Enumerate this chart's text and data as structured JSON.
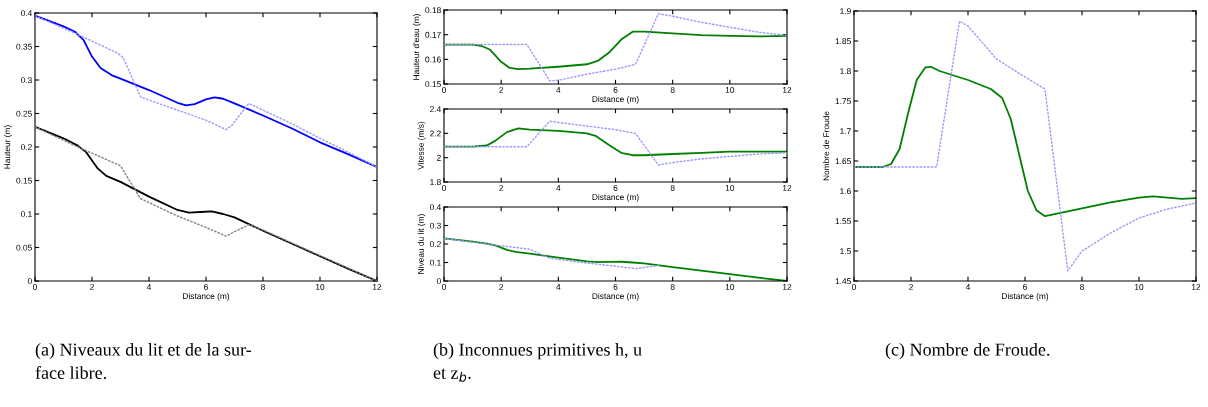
{
  "chart_data": [
    {
      "type": "line",
      "xlabel": "Distance (m)",
      "ylabel": "Hauteur (m)",
      "xlim": [
        0,
        12
      ],
      "xticks": [
        0,
        2,
        4,
        6,
        8,
        10,
        12
      ],
      "ylim": [
        0,
        0.4
      ],
      "yticks": [
        0,
        0.05,
        0.1,
        0.15,
        0.2,
        0.25,
        0.3,
        0.35,
        0.4
      ],
      "grid": false,
      "legend": false,
      "annotations": [
        "(a) Niveaux du lit et de la sur-\nface libre."
      ],
      "series": [
        {
          "color": "#9999ff",
          "line_style": "dotted",
          "x": [
            0,
            1.5,
            2.9,
            3.1,
            3.7,
            4,
            5,
            6,
            6.7,
            6.9,
            7.5,
            8,
            9,
            10,
            11,
            12
          ],
          "values": [
            0.396,
            0.368,
            0.34,
            0.333,
            0.275,
            0.27,
            0.255,
            0.24,
            0.226,
            0.232,
            0.265,
            0.255,
            0.235,
            0.213,
            0.192,
            0.17
          ]
        },
        {
          "color": "#0000ff",
          "line_style": "solid",
          "x": [
            0,
            1,
            1.4,
            1.7,
            2,
            2.3,
            2.7,
            3,
            4,
            5,
            5.3,
            5.6,
            6,
            6.3,
            6.6,
            7,
            8,
            9,
            10,
            11,
            12
          ],
          "values": [
            0.396,
            0.38,
            0.372,
            0.36,
            0.335,
            0.318,
            0.307,
            0.302,
            0.285,
            0.266,
            0.262,
            0.264,
            0.271,
            0.274,
            0.272,
            0.265,
            0.247,
            0.228,
            0.207,
            0.189,
            0.17
          ]
        },
        {
          "color": "#808080",
          "line_style": "dotted",
          "x": [
            0,
            1.5,
            3,
            3.7,
            5,
            6,
            6.7,
            7.5,
            8,
            9,
            10,
            11,
            12
          ],
          "values": [
            0.23,
            0.2,
            0.172,
            0.123,
            0.097,
            0.08,
            0.067,
            0.084,
            0.076,
            0.057,
            0.038,
            0.019,
            0
          ]
        },
        {
          "color": "#000000",
          "line_style": "solid",
          "x": [
            0,
            1,
            1.5,
            1.8,
            2,
            2.2,
            2.5,
            3,
            4,
            5,
            5.4,
            5.8,
            6.2,
            6.6,
            7,
            8,
            9,
            10,
            11,
            12
          ],
          "values": [
            0.23,
            0.213,
            0.202,
            0.192,
            0.18,
            0.168,
            0.157,
            0.148,
            0.126,
            0.106,
            0.102,
            0.103,
            0.104,
            0.1,
            0.095,
            0.075,
            0.056,
            0.037,
            0.018,
            0
          ]
        }
      ]
    },
    {
      "type": "line",
      "xlabel": "Distance (m)",
      "ylabel": "Hauteur d'eau (m)",
      "xlim": [
        0,
        12
      ],
      "xticks": [
        0,
        2,
        4,
        6,
        8,
        10,
        12
      ],
      "ylim": [
        0.15,
        0.18
      ],
      "yticks": [
        0.15,
        0.16,
        0.17,
        0.18
      ],
      "grid": false,
      "legend": false,
      "series": [
        {
          "color": "#9999ff",
          "line_style": "dotted",
          "x": [
            0,
            2.9,
            3.7,
            4,
            5,
            6,
            6.7,
            7.5,
            8,
            9,
            10,
            11,
            12
          ],
          "values": [
            0.166,
            0.166,
            0.1513,
            0.1515,
            0.154,
            0.156,
            0.158,
            0.1785,
            0.1775,
            0.175,
            0.173,
            0.171,
            0.1697
          ]
        },
        {
          "color": "#007f00",
          "line_style": "solid",
          "x": [
            0,
            1,
            1.3,
            1.6,
            2,
            2.3,
            2.6,
            3,
            4,
            5,
            5.4,
            5.8,
            6.2,
            6.6,
            7,
            8,
            9,
            10,
            11,
            12
          ],
          "values": [
            0.166,
            0.166,
            0.1655,
            0.164,
            0.159,
            0.1565,
            0.156,
            0.1562,
            0.157,
            0.158,
            0.1595,
            0.163,
            0.168,
            0.1712,
            0.1712,
            0.1705,
            0.1698,
            0.1695,
            0.1693,
            0.1695
          ]
        }
      ]
    },
    {
      "type": "line",
      "xlabel": "Distance (m)",
      "ylabel": "Vitesse (m/s)",
      "xlim": [
        0,
        12
      ],
      "xticks": [
        0,
        2,
        4,
        6,
        8,
        10,
        12
      ],
      "ylim": [
        1.8,
        2.4
      ],
      "yticks": [
        1.8,
        2,
        2.2,
        2.4
      ],
      "grid": false,
      "legend": false,
      "series": [
        {
          "color": "#9999ff",
          "line_style": "dotted",
          "x": [
            0,
            2.9,
            3.7,
            4,
            5,
            6,
            6.7,
            7.5,
            8,
            9,
            10,
            11,
            12
          ],
          "values": [
            2.09,
            2.09,
            2.3,
            2.29,
            2.26,
            2.23,
            2.2,
            1.94,
            1.96,
            1.99,
            2.01,
            2.03,
            2.04
          ]
        },
        {
          "color": "#007f00",
          "line_style": "solid",
          "x": [
            0,
            1,
            1.5,
            1.8,
            2.2,
            2.6,
            3,
            4,
            5,
            5.3,
            5.8,
            6.2,
            6.6,
            7,
            8,
            9,
            10,
            11,
            12
          ],
          "values": [
            2.09,
            2.09,
            2.1,
            2.14,
            2.21,
            2.24,
            2.23,
            2.22,
            2.2,
            2.18,
            2.1,
            2.04,
            2.02,
            2.02,
            2.03,
            2.04,
            2.05,
            2.05,
            2.05
          ]
        }
      ]
    },
    {
      "type": "line",
      "xlabel": "Distance (m)",
      "ylabel": "Niveau du lit (m)",
      "xlim": [
        0,
        12
      ],
      "xticks": [
        0,
        2,
        4,
        6,
        8,
        10,
        12
      ],
      "ylim": [
        0,
        0.4
      ],
      "yticks": [
        0,
        0.1,
        0.2,
        0.3,
        0.4
      ],
      "grid": false,
      "legend": false,
      "annotations": [
        "(b) Inconnues primitives h, u\net z$_{b}$."
      ],
      "series": [
        {
          "color": "#9999ff",
          "line_style": "dotted",
          "x": [
            0,
            1.5,
            3,
            3.7,
            5,
            6,
            6.7,
            7.5
          ],
          "values": [
            0.23,
            0.2,
            0.172,
            0.123,
            0.097,
            0.08,
            0.067,
            0.084
          ]
        },
        {
          "color": "#007f00",
          "line_style": "solid",
          "x": [
            0,
            1,
            1.5,
            1.8,
            2,
            2.2,
            2.5,
            3,
            4,
            5,
            5.4,
            5.8,
            6.2,
            6.6,
            7,
            8,
            9,
            10,
            11,
            12
          ],
          "values": [
            0.23,
            0.213,
            0.202,
            0.192,
            0.18,
            0.168,
            0.157,
            0.148,
            0.126,
            0.106,
            0.102,
            0.103,
            0.104,
            0.1,
            0.095,
            0.075,
            0.056,
            0.037,
            0.018,
            0
          ]
        }
      ]
    },
    {
      "type": "line",
      "xlabel": "Distance (m)",
      "ylabel": "Nombre de Froude",
      "xlim": [
        0,
        12
      ],
      "xticks": [
        0,
        2,
        4,
        6,
        8,
        10,
        12
      ],
      "ylim": [
        1.45,
        1.9
      ],
      "yticks": [
        1.45,
        1.5,
        1.55,
        1.6,
        1.65,
        1.7,
        1.75,
        1.8,
        1.85,
        1.9
      ],
      "grid": false,
      "legend": false,
      "annotations": [
        "(c) Nombre de Froude."
      ],
      "series": [
        {
          "color": "#9999ff",
          "line_style": "dotted",
          "x": [
            0,
            2.9,
            3.7,
            4,
            5,
            6,
            6.7,
            7.5,
            8,
            9,
            10,
            11,
            12
          ],
          "values": [
            1.64,
            1.64,
            1.883,
            1.875,
            1.82,
            1.79,
            1.77,
            1.467,
            1.5,
            1.53,
            1.555,
            1.57,
            1.58
          ]
        },
        {
          "color": "#007f00",
          "line_style": "solid",
          "x": [
            0,
            1,
            1.3,
            1.6,
            1.9,
            2.2,
            2.5,
            2.7,
            3,
            4,
            4.8,
            5.2,
            5.5,
            5.8,
            6.1,
            6.4,
            6.7,
            7,
            8,
            9,
            10,
            10.5,
            11,
            11.5,
            12
          ],
          "values": [
            1.64,
            1.64,
            1.645,
            1.67,
            1.73,
            1.785,
            1.806,
            1.807,
            1.8,
            1.785,
            1.77,
            1.755,
            1.72,
            1.66,
            1.6,
            1.568,
            1.558,
            1.561,
            1.571,
            1.581,
            1.589,
            1.591,
            1.589,
            1.587,
            1.588
          ]
        }
      ]
    }
  ]
}
